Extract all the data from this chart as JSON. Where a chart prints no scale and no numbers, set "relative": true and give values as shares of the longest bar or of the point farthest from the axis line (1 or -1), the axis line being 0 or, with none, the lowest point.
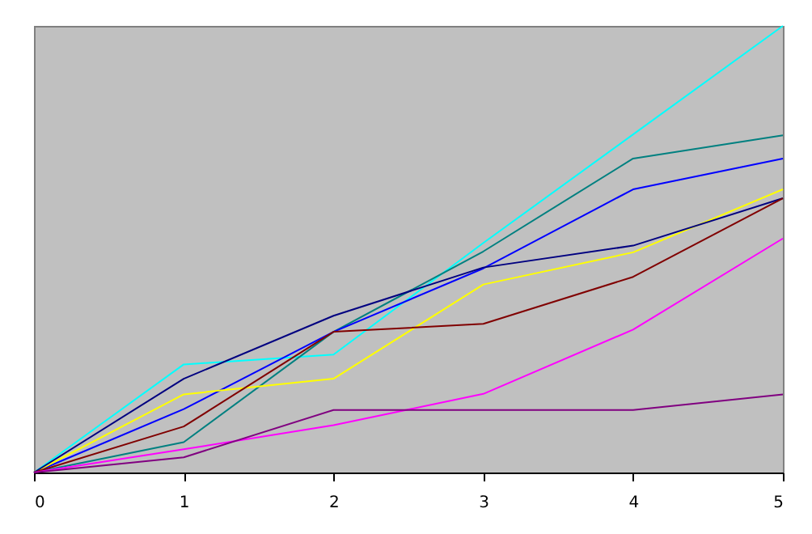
{
  "chart_data": {
    "type": "line",
    "relative": true,
    "x": [
      0,
      1,
      2,
      3,
      4,
      5
    ],
    "xlim": [
      0,
      5
    ],
    "xticks": [
      0,
      1,
      2,
      3,
      4,
      5
    ],
    "grid": false,
    "legend": false,
    "marker": "none",
    "line_style": "solid",
    "series": [
      {
        "color": "#00ffff",
        "values": [
          0,
          0.242,
          0.264,
          0.514,
          0.757,
          1
        ]
      },
      {
        "color": "#008080",
        "values": [
          0,
          0.068,
          0.315,
          0.495,
          0.703,
          0.755
        ]
      },
      {
        "color": "#0000ff",
        "values": [
          0,
          0.142,
          0.315,
          0.457,
          0.634,
          0.703
        ]
      },
      {
        "color": "#ffff00",
        "values": [
          0,
          0.175,
          0.21,
          0.421,
          0.493,
          0.634
        ]
      },
      {
        "color": "#000080",
        "values": [
          0,
          0.21,
          0.351,
          0.459,
          0.508,
          0.614
        ]
      },
      {
        "color": "#800000",
        "values": [
          0,
          0.103,
          0.315,
          0.333,
          0.438,
          0.614
        ]
      },
      {
        "color": "#ff00ff",
        "values": [
          0,
          0.052,
          0.106,
          0.176,
          0.32,
          0.524
        ]
      },
      {
        "color": "#800080",
        "values": [
          0,
          0.034,
          0.14,
          0.14,
          0.14,
          0.175
        ]
      }
    ]
  }
}
